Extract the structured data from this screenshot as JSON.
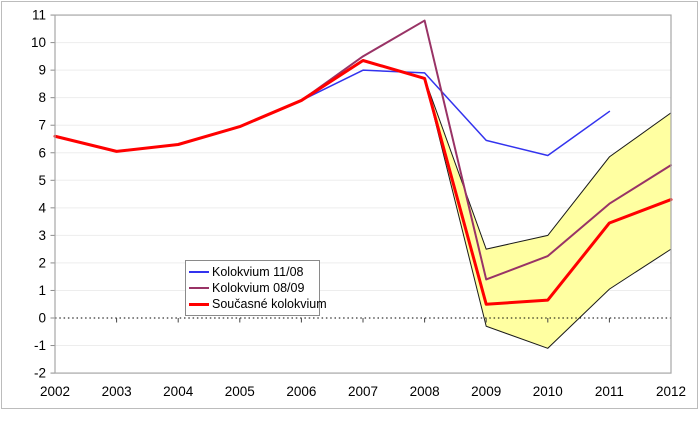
{
  "chart_data": {
    "type": "line",
    "title": "",
    "xlabel": "",
    "ylabel": "",
    "x_labels": [
      "2002",
      "2003",
      "2004",
      "2005",
      "2006",
      "2007",
      "2008",
      "2009",
      "2010",
      "2011",
      "2012"
    ],
    "ylim": [
      -2,
      11
    ],
    "y_ticks": [
      -2,
      -1,
      0,
      1,
      2,
      3,
      4,
      5,
      6,
      7,
      8,
      9,
      10,
      11
    ],
    "grid": "horizontal",
    "grid_color": "#ededed",
    "axis_color": "#a6a6a6",
    "text_color": "#000000",
    "series": [
      {
        "name": "Kolokvium 11/08",
        "color": "#3333ee",
        "width": 1.5,
        "values": [
          6.6,
          6.05,
          6.3,
          6.95,
          7.9,
          9.0,
          8.9,
          6.45,
          5.9,
          7.5,
          null
        ]
      },
      {
        "name": "Kolokvium 08/09",
        "color": "#993366",
        "width": 2,
        "values": [
          6.6,
          6.05,
          6.3,
          6.95,
          7.9,
          9.5,
          10.8,
          1.4,
          2.25,
          4.15,
          5.55
        ]
      },
      {
        "name": "Současné kolokvium",
        "color": "#ff0000",
        "width": 3,
        "values": [
          6.6,
          6.05,
          6.3,
          6.95,
          7.9,
          9.35,
          8.7,
          0.5,
          0.65,
          3.45,
          4.3
        ]
      }
    ],
    "uncertainty_band": {
      "fill": "#ffffa1",
      "edge": "#1a1a1a",
      "x_labels": [
        "2008",
        "2009",
        "2010",
        "2011",
        "2012"
      ],
      "top": [
        8.7,
        2.5,
        3.0,
        5.85,
        7.45
      ],
      "bottom": [
        8.7,
        -0.3,
        -1.1,
        1.05,
        2.5
      ]
    },
    "zero_line": {
      "y": 0,
      "style": "dotted",
      "color": "#000000"
    },
    "droplines": [
      {
        "x_label": "2002",
        "from": 6.6,
        "to": 0
      },
      {
        "x_label": "2012",
        "from": 2.5,
        "to": 0
      }
    ],
    "legend": {
      "position": "inside-center-left",
      "background": "#ffffff",
      "border": "#8a8a8a"
    }
  }
}
